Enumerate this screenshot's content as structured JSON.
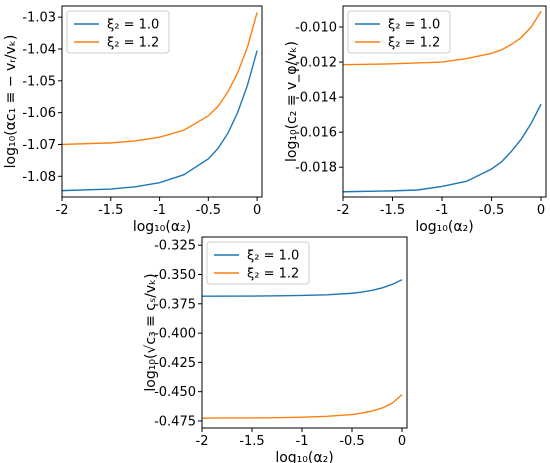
{
  "chart_data": [
    {
      "type": "line",
      "xlabel": "log₁₀(α₂)",
      "ylabel": "log₁₀(αc₁ ≡ − vᵣ/vₖ)",
      "xlim": [
        -2.0,
        0.05
      ],
      "ylim": [
        -1.0865,
        -1.0265
      ],
      "xticks": [
        "-2",
        "-1.5",
        "-1",
        "-0.5",
        "0"
      ],
      "xtick_values": [
        -2,
        -1.5,
        -1,
        -0.5,
        0
      ],
      "yticks": [
        "-1.08",
        "-1.07",
        "-1.06",
        "-1.05",
        "-1.04",
        "-1.03"
      ],
      "ytick_values": [
        -1.08,
        -1.07,
        -1.06,
        -1.05,
        -1.04,
        -1.03
      ],
      "legend_position": "upper-left",
      "series": [
        {
          "name": "ξ₂ = 1.0",
          "color": "#1f77b4",
          "x": [
            -2,
            -1.5,
            -1.25,
            -1,
            -0.75,
            -0.5,
            -0.4,
            -0.3,
            -0.2,
            -0.1,
            0
          ],
          "y": [
            -1.0845,
            -1.084,
            -1.0833,
            -1.082,
            -1.0795,
            -1.0745,
            -1.0712,
            -1.0665,
            -1.06,
            -1.0515,
            -1.0405
          ]
        },
        {
          "name": "ξ₂ = 1.2",
          "color": "#ff7f0e",
          "x": [
            -2,
            -1.5,
            -1.25,
            -1,
            -0.75,
            -0.5,
            -0.4,
            -0.3,
            -0.2,
            -0.1,
            0
          ],
          "y": [
            -1.07,
            -1.0695,
            -1.0689,
            -1.0677,
            -1.0655,
            -1.061,
            -1.058,
            -1.0535,
            -1.0475,
            -1.0395,
            -1.0285
          ]
        }
      ]
    },
    {
      "type": "line",
      "xlabel": "log₁₀(α₂)",
      "ylabel": "log₁₀(c₂ ≡ v_φ/vₖ)",
      "xlim": [
        -2.0,
        0.05
      ],
      "ylim": [
        -0.0197,
        -0.0088
      ],
      "xticks": [
        "-2",
        "-1.5",
        "-1",
        "-0.5",
        "0"
      ],
      "xtick_values": [
        -2,
        -1.5,
        -1,
        -0.5,
        0
      ],
      "yticks": [
        "-0.018",
        "-0.016",
        "-0.014",
        "-0.012",
        "-0.010"
      ],
      "ytick_values": [
        -0.018,
        -0.016,
        -0.014,
        -0.012,
        -0.01
      ],
      "legend_position": "upper-left",
      "series": [
        {
          "name": "ξ₂ = 1.0",
          "color": "#1f77b4",
          "x": [
            -2,
            -1.5,
            -1.25,
            -1,
            -0.75,
            -0.5,
            -0.4,
            -0.3,
            -0.2,
            -0.1,
            0
          ],
          "y": [
            -0.0194,
            -0.01935,
            -0.0193,
            -0.0191,
            -0.0188,
            -0.0181,
            -0.0177,
            -0.0171,
            -0.0164,
            -0.0155,
            -0.0144
          ]
        },
        {
          "name": "ξ₂ = 1.2",
          "color": "#ff7f0e",
          "x": [
            -2,
            -1.5,
            -1.25,
            -1,
            -0.75,
            -0.5,
            -0.4,
            -0.3,
            -0.2,
            -0.1,
            0
          ],
          "y": [
            -0.01215,
            -0.0121,
            -0.01205,
            -0.012,
            -0.0118,
            -0.0115,
            -0.0113,
            -0.011,
            -0.0106,
            -0.01,
            -0.0091
          ]
        }
      ]
    },
    {
      "type": "line",
      "xlabel": "log₁₀(α₂)",
      "ylabel": "log₁₀(√c₃ ≡ cₛ/vₖ)",
      "xlim": [
        -2.0,
        0.05
      ],
      "ylim": [
        -0.481,
        -0.318
      ],
      "xticks": [
        "-2",
        "-1.5",
        "-1",
        "-0.5",
        "0"
      ],
      "xtick_values": [
        -2,
        -1.5,
        -1,
        -0.5,
        0
      ],
      "yticks": [
        "-0.475",
        "-0.450",
        "-0.425",
        "-0.400",
        "-0.375",
        "-0.350",
        "-0.325"
      ],
      "ytick_values": [
        -0.475,
        -0.45,
        -0.425,
        -0.4,
        -0.375,
        -0.35,
        -0.325
      ],
      "legend_position": "upper-left",
      "series": [
        {
          "name": "ξ₂ = 1.0",
          "color": "#1f77b4",
          "x": [
            -2,
            -1.5,
            -1.25,
            -1,
            -0.75,
            -0.5,
            -0.4,
            -0.3,
            -0.2,
            -0.1,
            0
          ],
          "y": [
            -0.3685,
            -0.3684,
            -0.3682,
            -0.3679,
            -0.3673,
            -0.366,
            -0.365,
            -0.3635,
            -0.3615,
            -0.3585,
            -0.3545
          ]
        },
        {
          "name": "ξ₂ = 1.2",
          "color": "#ff7f0e",
          "x": [
            -2,
            -1.5,
            -1.25,
            -1,
            -0.75,
            -0.5,
            -0.4,
            -0.3,
            -0.2,
            -0.1,
            0
          ],
          "y": [
            -0.4725,
            -0.4724,
            -0.4722,
            -0.4718,
            -0.471,
            -0.4695,
            -0.4683,
            -0.4665,
            -0.464,
            -0.46,
            -0.4525
          ]
        }
      ]
    }
  ]
}
